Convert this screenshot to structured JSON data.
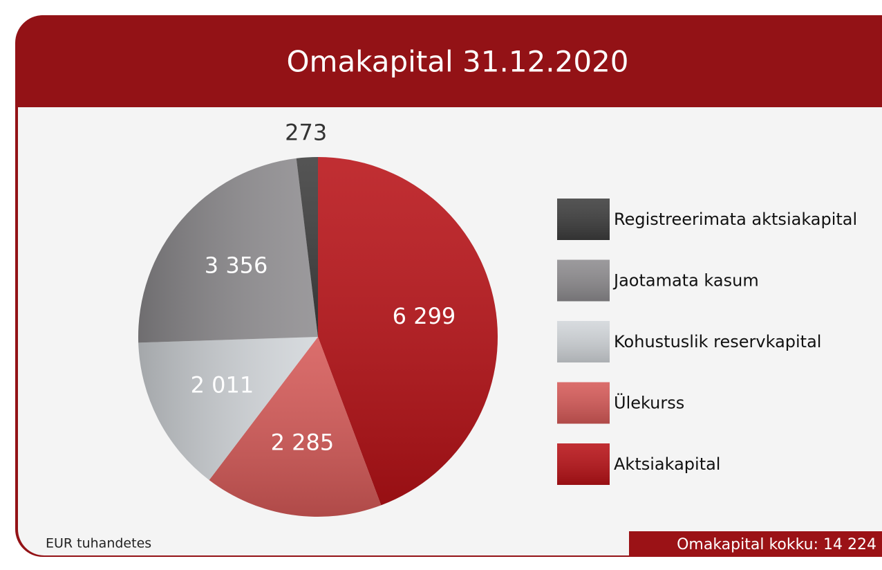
{
  "chart_data": {
    "type": "pie",
    "title": "Omakapital 31.12.2020",
    "categories": [
      "Aktsiakapital",
      "Ülekurss",
      "Kohustuslik reservkapital",
      "Jaotamata kasum",
      "Registreerimata aktsiakapital"
    ],
    "values": [
      6299,
      2285,
      2011,
      3356,
      273
    ],
    "value_labels": [
      "6 299",
      "2 285",
      "2 011",
      "3 356",
      "273"
    ],
    "colors": [
      "#b81217",
      "#d65a58",
      "#d2d6da",
      "#8e8c8f",
      "#3d3d3d"
    ],
    "legend": "right",
    "footnote": "EUR tuhandetes",
    "total_label": "Omakapital kokku: 14 224"
  }
}
